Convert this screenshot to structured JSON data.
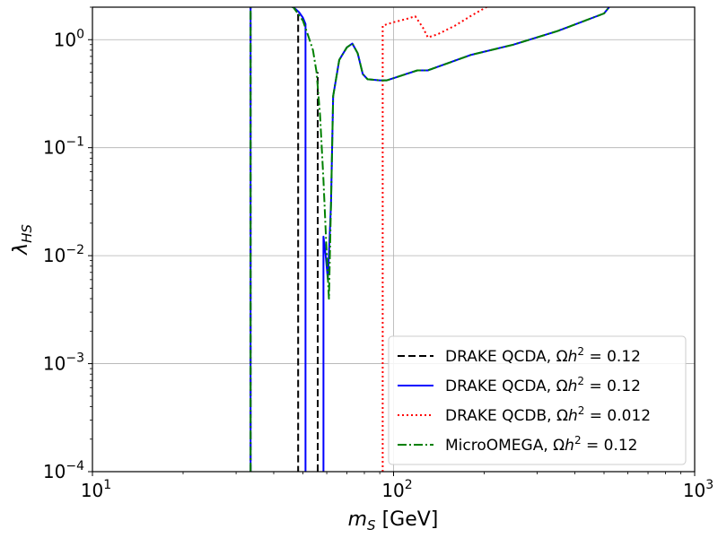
{
  "chart_data": {
    "type": "line",
    "xlabel": "m_S [GeV]",
    "ylabel": "λ_HS",
    "x_scale": "log",
    "y_scale": "log",
    "xlim": [
      10,
      1000
    ],
    "ylim": [
      0.0001,
      2
    ],
    "grid": true,
    "legend_placement": "lower-right",
    "x_ticks": [
      {
        "value": 10,
        "base": "10",
        "exp": "1"
      },
      {
        "value": 100,
        "base": "10",
        "exp": "2"
      },
      {
        "value": 1000,
        "base": "10",
        "exp": "3"
      }
    ],
    "y_ticks": [
      {
        "value": 0.0001,
        "base": "10",
        "exp": "−4"
      },
      {
        "value": 0.001,
        "base": "10",
        "exp": "−3"
      },
      {
        "value": 0.01,
        "base": "10",
        "exp": "−2"
      },
      {
        "value": 0.1,
        "base": "10",
        "exp": "−1"
      },
      {
        "value": 1,
        "base": "10",
        "exp": "0"
      }
    ],
    "series": [
      {
        "name": "DRAKE QCDA, Ωh² = 0.12",
        "legend_prefix": "DRAKE QCDA, ",
        "legend_relic": "0.12",
        "color": "#000000",
        "dash": "8,4",
        "width": 2,
        "segments": [
          {
            "x": [
              33.5,
              33.5,
              46.5,
              47.8,
              48.2,
              48.2
            ]
          },
          {
            "x": [
              56,
              56
            ],
            "y": [
              0.0001,
              0.5
            ]
          }
        ],
        "segment_y": [
          [
            0.0001,
            2.5,
            2.0,
            1.8,
            1.7,
            0.0001
          ]
        ]
      },
      {
        "name": "DRAKE QCDA, Ωh² = 0.12",
        "legend_prefix": "DRAKE QCDA, ",
        "legend_relic": "0.12",
        "color": "#0000ff",
        "dash": "",
        "width": 2,
        "segments": [
          {
            "x": [
              33.5,
              33.5,
              46.5,
              48.5,
              50,
              51,
              51
            ]
          },
          {
            "x": [
              58.5,
              58.5,
              59.5,
              60.5,
              62,
              63,
              66,
              70,
              73,
              76,
              79,
              82,
              90,
              95,
              100,
              110,
              120,
              130,
              140,
              160,
              180,
              250,
              350,
              500,
              520
            ]
          }
        ],
        "segment_y": [
          [
            0.0001,
            2.5,
            2.0,
            1.8,
            1.6,
            1.4,
            0.0001
          ],
          [
            0.0001,
            0.015,
            0.01,
            0.006,
            0.03,
            0.3,
            0.65,
            0.85,
            0.92,
            0.75,
            0.48,
            0.43,
            0.42,
            0.42,
            0.44,
            0.48,
            0.52,
            0.52,
            0.56,
            0.64,
            0.72,
            0.9,
            1.2,
            1.75,
            2.0
          ]
        ]
      },
      {
        "name": "DRAKE QCDB, Ωh² = 0.012",
        "legend_prefix": "DRAKE QCDB, ",
        "legend_relic": "0.012",
        "color": "#ff0000",
        "dash": "2,3",
        "width": 2,
        "segments": [
          {
            "x": [
              92,
              92,
              100,
              110,
              118,
              125,
              130,
              140,
              160,
              180,
              200,
              210
            ]
          }
        ],
        "segment_y": [
          [
            0.0001,
            1.35,
            1.45,
            1.55,
            1.65,
            1.3,
            1.05,
            1.12,
            1.35,
            1.65,
            1.95,
            2.1
          ]
        ]
      },
      {
        "name": "MicroOMEGA, Ωh² = 0.12",
        "legend_prefix": "MicroOMEGA, ",
        "legend_relic": "0.12",
        "color": "#008000",
        "dash": "10,3,2,3",
        "width": 2,
        "segments": [
          {
            "x": [
              33.5,
              33.5,
              46.5,
              50,
              52,
              54,
              55.5,
              57,
              58.5,
              60,
              61,
              62,
              63,
              66,
              70,
              73,
              76,
              79,
              82,
              90,
              95,
              100,
              110,
              120,
              130,
              140,
              160,
              180,
              250,
              350,
              500,
              520
            ]
          }
        ],
        "segment_y": [
          [
            0.0001,
            2.5,
            2.0,
            1.5,
            1.1,
            0.8,
            0.5,
            0.2,
            0.05,
            0.01,
            0.004,
            0.03,
            0.3,
            0.65,
            0.85,
            0.92,
            0.75,
            0.48,
            0.43,
            0.42,
            0.42,
            0.44,
            0.48,
            0.52,
            0.52,
            0.56,
            0.64,
            0.72,
            0.9,
            1.2,
            1.75,
            2.0
          ]
        ]
      }
    ]
  }
}
